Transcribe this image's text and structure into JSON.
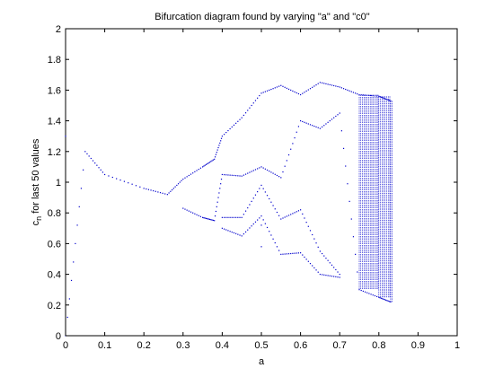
{
  "chart_data": {
    "type": "scatter",
    "title": "Bifurcation diagram found by varying \"a\" and \"c0\"",
    "xlabel": "a",
    "ylabel_main": "c",
    "ylabel_sub": "n",
    "ylabel_rest": " for last 50 values",
    "xlim": [
      0,
      1
    ],
    "ylim": [
      0,
      2
    ],
    "xticks": [
      "0",
      "0.1",
      "0.2",
      "0.3",
      "0.4",
      "0.5",
      "0.6",
      "0.7",
      "0.8",
      "0.9",
      "1"
    ],
    "yticks": [
      "0",
      "0.2",
      "0.4",
      "0.6",
      "0.8",
      "1",
      "1.2",
      "1.4",
      "1.6",
      "1.8",
      "2"
    ],
    "grid": false,
    "marker_color": "#0000cc",
    "series": [
      {
        "values": [
          {
            "a": 0.0,
            "c": [
              0.0,
              1.3
            ]
          },
          {
            "a": 0.05,
            "c": [
              1.2
            ]
          },
          {
            "a": 0.1,
            "c": [
              1.05
            ]
          },
          {
            "a": 0.2,
            "c": [
              0.96
            ]
          },
          {
            "a": 0.26,
            "c": [
              0.92
            ]
          },
          {
            "a": 0.3,
            "c": [
              1.02,
              0.83
            ]
          },
          {
            "a": 0.35,
            "c": [
              1.1,
              0.77
            ]
          },
          {
            "a": 0.38,
            "c": [
              1.15,
              0.75
            ]
          },
          {
            "a": 0.4,
            "c": [
              1.3,
              1.05,
              0.77,
              0.7
            ]
          },
          {
            "a": 0.45,
            "c": [
              1.42,
              1.04,
              0.77,
              0.65
            ]
          },
          {
            "a": 0.5,
            "c": [
              1.58,
              1.1,
              0.98,
              0.78,
              0.72,
              0.58
            ]
          },
          {
            "a": 0.55,
            "c": [
              1.63,
              1.03,
              0.76,
              0.53
            ]
          },
          {
            "a": 0.6,
            "c": [
              1.57,
              1.4,
              0.82,
              0.54
            ]
          },
          {
            "a": 0.65,
            "c": [
              1.65,
              1.35,
              0.55,
              0.4
            ]
          },
          {
            "a": 0.7,
            "c": [
              1.62,
              1.45,
              0.4,
              0.38
            ]
          },
          {
            "a": 0.75,
            "c": [
              1.57,
              0.3
            ]
          },
          {
            "a": 0.8,
            "c": [
              1.56,
              0.25
            ]
          },
          {
            "a": 0.83,
            "c": [
              1.53,
              0.22
            ]
          }
        ]
      }
    ]
  }
}
